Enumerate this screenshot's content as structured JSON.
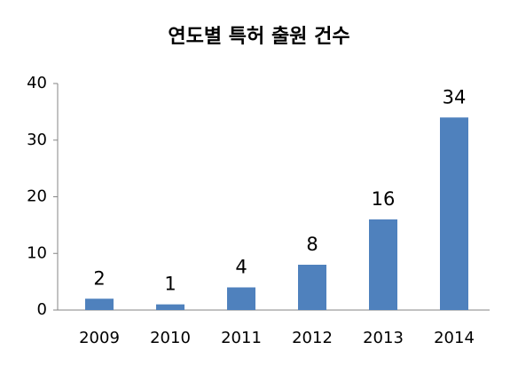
{
  "chart_data": {
    "type": "bar",
    "title": "연도별 특허 출원 건수",
    "categories": [
      "2009",
      "2010",
      "2011",
      "2012",
      "2013",
      "2014"
    ],
    "values": [
      2,
      1,
      4,
      8,
      16,
      34
    ],
    "color": "#4f81bd",
    "ylim": [
      0,
      40
    ],
    "yticks": [
      0,
      10,
      20,
      30,
      40
    ],
    "grid": false
  }
}
